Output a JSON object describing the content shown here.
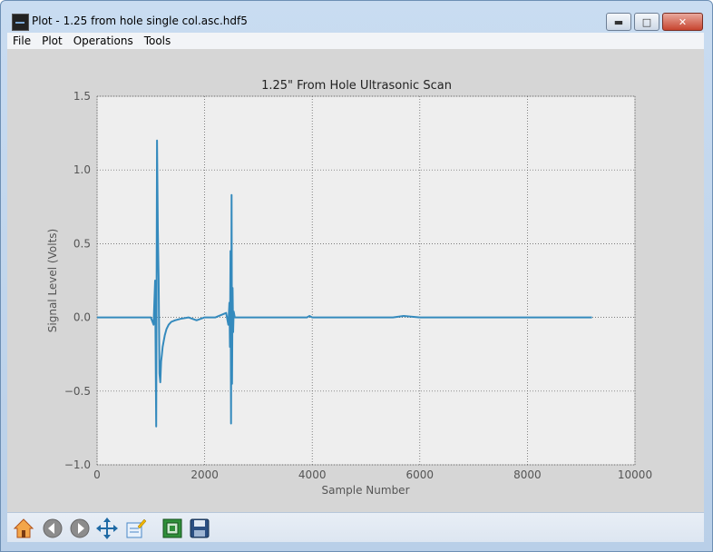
{
  "window": {
    "title": "Plot - 1.25 from hole single col.asc.hdf5"
  },
  "menu": {
    "items": [
      "File",
      "Plot",
      "Operations",
      "Tools"
    ]
  },
  "toolbar": {
    "icons": [
      "home-icon",
      "back-icon",
      "forward-icon",
      "pan-icon",
      "edit-curves-icon",
      "subplot-config-icon",
      "save-icon"
    ]
  },
  "chart_data": {
    "type": "line",
    "title": "1.25\" From Hole Ultrasonic Scan",
    "xlabel": "Sample Number",
    "ylabel": "Signal Level (Volts)",
    "xlim": [
      0,
      10000
    ],
    "ylim": [
      -1.0,
      1.5
    ],
    "xticks": [
      "0",
      "2000",
      "4000",
      "6000",
      "8000",
      "10000"
    ],
    "yticks": [
      "1.5",
      "1.0",
      "0.5",
      "0.0",
      "−0.5",
      "−1.0"
    ],
    "grid": true,
    "series": [
      {
        "color": "#348abd",
        "x": [
          0,
          1000,
          1050,
          1080,
          1100,
          1115,
          1130,
          1145,
          1160,
          1175,
          1190,
          1205,
          1220,
          1240,
          1260,
          1290,
          1330,
          1380,
          1450,
          1550,
          1700,
          1850,
          2000,
          2200,
          2400,
          2440,
          2460,
          2470,
          2480,
          2490,
          2500,
          2510,
          2520,
          2530,
          2540,
          2560,
          2600,
          3900,
          3950,
          4000,
          5500,
          5700,
          6000,
          9200
        ],
        "y": [
          0.0,
          0.0,
          -0.05,
          0.25,
          -0.74,
          1.2,
          0.6,
          0.25,
          -0.38,
          -0.44,
          -0.3,
          -0.25,
          -0.2,
          -0.16,
          -0.12,
          -0.08,
          -0.05,
          -0.03,
          -0.02,
          -0.01,
          0.0,
          -0.02,
          0.0,
          0.0,
          0.03,
          -0.05,
          0.1,
          -0.2,
          0.45,
          -0.72,
          0.83,
          -0.45,
          0.2,
          -0.1,
          0.04,
          0.0,
          0.0,
          0.0,
          0.01,
          0.0,
          0.0,
          0.01,
          0.0,
          0.0
        ]
      }
    ]
  }
}
